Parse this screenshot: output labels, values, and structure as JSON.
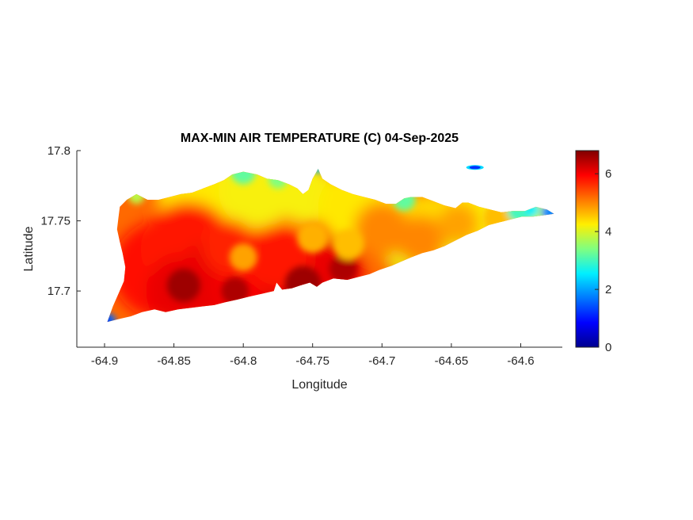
{
  "figure": {
    "background": "#ffffff"
  },
  "chart_data": {
    "type": "heatmap",
    "title": "MAX-MIN AIR TEMPERATURE (C) 04-Sep-2025",
    "xlabel": "Longitude",
    "ylabel": "Latitude",
    "xlim": [
      -64.92,
      -64.57
    ],
    "ylim": [
      17.66,
      17.8
    ],
    "grid": false,
    "x_tick_values": [
      -64.9,
      -64.85,
      -64.8,
      -64.75,
      -64.7,
      -64.65,
      -64.6
    ],
    "x_tick_labels": [
      "-64.9",
      "-64.85",
      "-64.8",
      "-64.75",
      "-64.7",
      "-64.65",
      "-64.6"
    ],
    "y_tick_values": [
      17.7,
      17.75,
      17.8
    ],
    "y_tick_labels": [
      "17.7",
      "17.75",
      "17.8"
    ],
    "colorbar": {
      "position": "right",
      "min": 0,
      "max": 6.8,
      "tick_values": [
        0,
        2,
        4,
        6
      ],
      "tick_labels": [
        "0",
        "2",
        "4",
        "6"
      ],
      "colormap": "jet",
      "stops": [
        {
          "t": 0.0,
          "color": "#00008f"
        },
        {
          "t": 0.125,
          "color": "#0000ff"
        },
        {
          "t": 0.375,
          "color": "#00efff"
        },
        {
          "t": 0.5,
          "color": "#80ff80"
        },
        {
          "t": 0.625,
          "color": "#ffef00"
        },
        {
          "t": 0.875,
          "color": "#ff0000"
        },
        {
          "t": 1.0,
          "color": "#800000"
        }
      ]
    },
    "field": {
      "base_temp_c": 5.2,
      "blobs": [
        [
          -64.83,
          17.768,
          0.032,
          4.3
        ],
        [
          -64.79,
          17.772,
          0.028,
          4.2
        ],
        [
          -64.755,
          17.769,
          0.022,
          4.2
        ],
        [
          -64.72,
          17.76,
          0.026,
          4.3
        ],
        [
          -64.695,
          17.752,
          0.022,
          4.3
        ],
        [
          -64.665,
          17.744,
          0.026,
          4.4
        ],
        [
          -64.635,
          17.75,
          0.026,
          4.3
        ],
        [
          -64.608,
          17.753,
          0.02,
          4.2
        ],
        [
          -64.586,
          17.755,
          0.013,
          3.8
        ],
        [
          -64.68,
          17.728,
          0.018,
          4.1
        ],
        [
          -64.648,
          17.737,
          0.015,
          4.1
        ],
        [
          -64.7,
          17.744,
          0.02,
          5.0
        ],
        [
          -64.672,
          17.736,
          0.018,
          5.0
        ],
        [
          -64.645,
          17.748,
          0.015,
          4.8
        ],
        [
          -64.615,
          17.752,
          0.012,
          4.6
        ],
        [
          -64.6,
          17.7545,
          0.008,
          4.5
        ],
        [
          -64.86,
          17.715,
          0.035,
          5.9
        ],
        [
          -64.84,
          17.73,
          0.034,
          5.8
        ],
        [
          -64.845,
          17.7,
          0.025,
          6.1
        ],
        [
          -64.815,
          17.71,
          0.03,
          6.1
        ],
        [
          -64.79,
          17.704,
          0.03,
          6.0
        ],
        [
          -64.76,
          17.708,
          0.028,
          6.2
        ],
        [
          -64.735,
          17.714,
          0.022,
          6.1
        ],
        [
          -64.775,
          17.724,
          0.024,
          5.8
        ],
        [
          -64.81,
          17.731,
          0.02,
          5.7
        ],
        [
          -64.843,
          17.704,
          0.012,
          6.6
        ],
        [
          -64.757,
          17.705,
          0.013,
          6.6
        ],
        [
          -64.728,
          17.716,
          0.01,
          6.5
        ],
        [
          -64.806,
          17.7,
          0.01,
          6.5
        ],
        [
          -64.8,
          17.724,
          0.01,
          4.8
        ],
        [
          -64.75,
          17.738,
          0.011,
          4.7
        ],
        [
          -64.724,
          17.733,
          0.011,
          4.6
        ],
        [
          -64.8,
          17.785,
          0.009,
          3.2
        ],
        [
          -64.775,
          17.78,
          0.007,
          3.4
        ],
        [
          -64.684,
          17.765,
          0.008,
          3.2
        ],
        [
          -64.6,
          17.758,
          0.01,
          3.0
        ],
        [
          -64.877,
          17.768,
          0.006,
          3.8
        ],
        [
          -64.897,
          17.679,
          0.005,
          1.6
        ],
        [
          -64.899,
          17.678,
          0.003,
          0.8
        ],
        [
          -64.579,
          17.756,
          0.006,
          1.8
        ],
        [
          -64.592,
          17.758,
          0.005,
          2.6
        ],
        [
          -64.746,
          17.788,
          0.004,
          2.2
        ]
      ]
    },
    "islet": {
      "lon": -64.633,
      "lat": 17.788,
      "temp_c": 1.2
    },
    "island_outline": [
      [
        -64.898,
        17.678
      ],
      [
        -64.89,
        17.68
      ],
      [
        -64.881,
        17.682
      ],
      [
        -64.873,
        17.685
      ],
      [
        -64.864,
        17.687
      ],
      [
        -64.856,
        17.685
      ],
      [
        -64.847,
        17.687
      ],
      [
        -64.838,
        17.688
      ],
      [
        -64.83,
        17.689
      ],
      [
        -64.821,
        17.69
      ],
      [
        -64.813,
        17.692
      ],
      [
        -64.804,
        17.694
      ],
      [
        -64.796,
        17.696
      ],
      [
        -64.787,
        17.698
      ],
      [
        -64.778,
        17.7
      ],
      [
        -64.776,
        17.706
      ],
      [
        -64.772,
        17.701
      ],
      [
        -64.765,
        17.702
      ],
      [
        -64.759,
        17.704
      ],
      [
        -64.752,
        17.706
      ],
      [
        -64.747,
        17.703
      ],
      [
        -64.743,
        17.706
      ],
      [
        -64.735,
        17.709
      ],
      [
        -64.725,
        17.708
      ],
      [
        -64.717,
        17.71
      ],
      [
        -64.709,
        17.712
      ],
      [
        -64.702,
        17.715
      ],
      [
        -64.693,
        17.718
      ],
      [
        -64.686,
        17.721
      ],
      [
        -64.679,
        17.724
      ],
      [
        -64.671,
        17.727
      ],
      [
        -64.663,
        17.729
      ],
      [
        -64.655,
        17.732
      ],
      [
        -64.647,
        17.736
      ],
      [
        -64.639,
        17.74
      ],
      [
        -64.631,
        17.743
      ],
      [
        -64.623,
        17.747
      ],
      [
        -64.615,
        17.749
      ],
      [
        -64.607,
        17.751
      ],
      [
        -64.599,
        17.753
      ],
      [
        -64.591,
        17.753
      ],
      [
        -64.583,
        17.754
      ],
      [
        -64.576,
        17.755
      ],
      [
        -64.581,
        17.758
      ],
      [
        -64.589,
        17.76
      ],
      [
        -64.597,
        17.757
      ],
      [
        -64.606,
        17.757
      ],
      [
        -64.614,
        17.756
      ],
      [
        -64.622,
        17.758
      ],
      [
        -64.63,
        17.76
      ],
      [
        -64.638,
        17.763
      ],
      [
        -64.642,
        17.763
      ],
      [
        -64.647,
        17.759
      ],
      [
        -64.655,
        17.761
      ],
      [
        -64.663,
        17.764
      ],
      [
        -64.671,
        17.767
      ],
      [
        -64.679,
        17.767
      ],
      [
        -64.684,
        17.766
      ],
      [
        -64.69,
        17.762
      ],
      [
        -64.697,
        17.762
      ],
      [
        -64.705,
        17.765
      ],
      [
        -64.713,
        17.767
      ],
      [
        -64.721,
        17.769
      ],
      [
        -64.729,
        17.772
      ],
      [
        -64.737,
        17.776
      ],
      [
        -64.743,
        17.78
      ],
      [
        -64.746,
        17.787
      ],
      [
        -64.75,
        17.78
      ],
      [
        -64.753,
        17.772
      ],
      [
        -64.757,
        17.769
      ],
      [
        -64.761,
        17.773
      ],
      [
        -64.767,
        17.776
      ],
      [
        -64.775,
        17.779
      ],
      [
        -64.783,
        17.78
      ],
      [
        -64.79,
        17.783
      ],
      [
        -64.8,
        17.785
      ],
      [
        -64.808,
        17.783
      ],
      [
        -64.814,
        17.779
      ],
      [
        -64.821,
        17.776
      ],
      [
        -64.829,
        17.773
      ],
      [
        -64.837,
        17.77
      ],
      [
        -64.845,
        17.769
      ],
      [
        -64.853,
        17.767
      ],
      [
        -64.861,
        17.765
      ],
      [
        -64.869,
        17.765
      ],
      [
        -64.877,
        17.769
      ],
      [
        -64.884,
        17.765
      ],
      [
        -64.889,
        17.76
      ],
      [
        -64.89,
        17.752
      ],
      [
        -64.891,
        17.744
      ],
      [
        -64.889,
        17.735
      ],
      [
        -64.887,
        17.727
      ],
      [
        -64.885,
        17.717
      ],
      [
        -64.886,
        17.707
      ],
      [
        -64.89,
        17.698
      ],
      [
        -64.894,
        17.689
      ]
    ]
  }
}
